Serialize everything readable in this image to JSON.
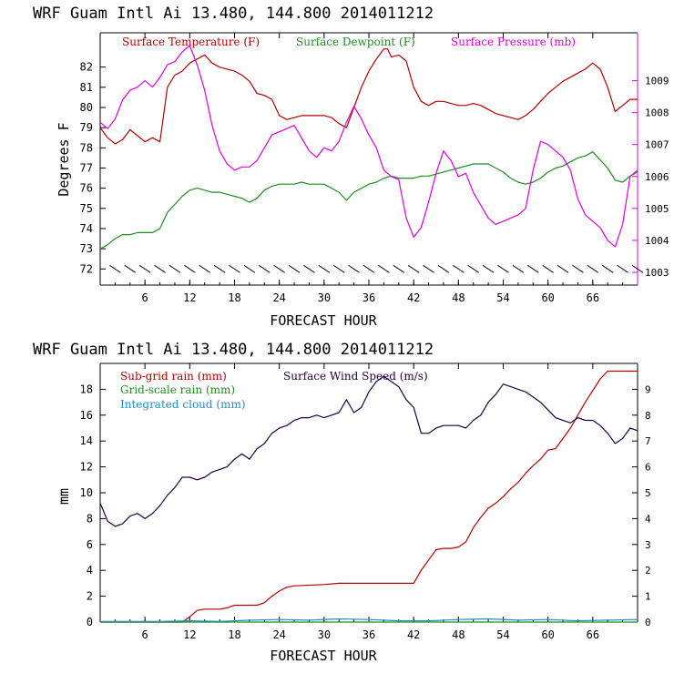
{
  "chart_data": [
    {
      "type": "line",
      "title": "WRF   Guam Intl Ai   13.480, 144.800  2014011212",
      "xlabel": "FORECAST HOUR",
      "ylabel": "Degrees F",
      "xlim": [
        0,
        72
      ],
      "ylim": [
        71.2,
        83.7
      ],
      "y2lim": [
        1002.6,
        1010.5
      ],
      "xticks": [
        6,
        12,
        18,
        24,
        30,
        36,
        42,
        48,
        54,
        60,
        66
      ],
      "xtick_labels": [
        "6",
        "12",
        "18",
        "24",
        "30",
        "36",
        "42",
        "48",
        "54",
        "60",
        "66"
      ],
      "yticks": [
        72,
        73,
        74,
        75,
        76,
        77,
        78,
        79,
        80,
        81,
        82
      ],
      "ytick_labels": [
        "72",
        "73",
        "74",
        "75",
        "76",
        "77",
        "78",
        "79",
        "80",
        "81",
        "82"
      ],
      "y2ticks": [
        1003,
        1004,
        1005,
        1006,
        1007,
        1008,
        1009
      ],
      "y2tick_labels": [
        "1003",
        "1004",
        "1005",
        "1006",
        "1007",
        "1008",
        "1009"
      ],
      "legend": [
        {
          "label": "Surface Temperature (F)",
          "color": "#b40000"
        },
        {
          "label": "Surface Dewpoint (F)",
          "color": "#1e8c1e"
        },
        {
          "label": "Surface Pressure (mb)",
          "color": "#e000e0"
        }
      ],
      "series": [
        {
          "name": "Surface Temperature (F)",
          "axis": "left",
          "color": "#b40000",
          "x": [
            0,
            1,
            2,
            3,
            4,
            5,
            6,
            7,
            8,
            9,
            10,
            11,
            12,
            13,
            14,
            15,
            16,
            17,
            18,
            19,
            20,
            21,
            22,
            23,
            24,
            25,
            26,
            27,
            28,
            29,
            30,
            31,
            32,
            33,
            34,
            35,
            36,
            37,
            38,
            38.5,
            39,
            40,
            41,
            42,
            43,
            44,
            45,
            46,
            47,
            48,
            49,
            50,
            51,
            52,
            53,
            54,
            55,
            56,
            57,
            58,
            59,
            60,
            61,
            62,
            63,
            64,
            65,
            66,
            67,
            68,
            69,
            70,
            71,
            72
          ],
          "y": [
            79.0,
            78.5,
            78.2,
            78.4,
            78.9,
            78.6,
            78.3,
            78.5,
            78.3,
            81.0,
            81.6,
            81.8,
            82.2,
            82.4,
            82.6,
            82.2,
            82.0,
            81.9,
            81.8,
            81.6,
            81.3,
            80.7,
            80.6,
            80.4,
            79.6,
            79.4,
            79.5,
            79.6,
            79.6,
            79.6,
            79.6,
            79.5,
            79.2,
            79.0,
            80.0,
            81.0,
            81.8,
            82.4,
            82.9,
            82.9,
            82.5,
            82.6,
            82.3,
            81.0,
            80.3,
            80.1,
            80.3,
            80.3,
            80.2,
            80.1,
            80.1,
            80.2,
            80.1,
            79.9,
            79.7,
            79.6,
            79.5,
            79.4,
            79.6,
            79.9,
            80.3,
            80.7,
            81.0,
            81.3,
            81.5,
            81.7,
            81.9,
            82.2,
            81.9,
            81.0,
            79.8,
            80.1,
            80.4,
            80.4
          ]
        },
        {
          "name": "Surface Dewpoint (F)",
          "axis": "left",
          "color": "#1e8c1e",
          "x": [
            0,
            1,
            2,
            3,
            4,
            5,
            6,
            7,
            8,
            9,
            10,
            11,
            12,
            13,
            14,
            15,
            16,
            17,
            18,
            19,
            20,
            21,
            22,
            23,
            24,
            25,
            26,
            27,
            28,
            29,
            30,
            31,
            32,
            33,
            34,
            35,
            36,
            37,
            38,
            39,
            40,
            41,
            42,
            43,
            44,
            45,
            46,
            47,
            48,
            49,
            50,
            51,
            52,
            53,
            54,
            55,
            56,
            57,
            58,
            59,
            60,
            61,
            62,
            63,
            64,
            65,
            66,
            67,
            68,
            69,
            70,
            71,
            72
          ],
          "y": [
            73.0,
            73.2,
            73.5,
            73.7,
            73.7,
            73.8,
            73.8,
            73.8,
            74.0,
            74.8,
            75.2,
            75.6,
            75.9,
            76.0,
            75.9,
            75.8,
            75.8,
            75.7,
            75.6,
            75.5,
            75.3,
            75.5,
            75.9,
            76.1,
            76.2,
            76.2,
            76.2,
            76.3,
            76.2,
            76.2,
            76.2,
            76.0,
            75.8,
            75.4,
            75.8,
            76.0,
            76.2,
            76.3,
            76.5,
            76.6,
            76.5,
            76.5,
            76.5,
            76.6,
            76.6,
            76.7,
            76.8,
            76.9,
            77.0,
            77.1,
            77.2,
            77.2,
            77.2,
            77.0,
            76.8,
            76.5,
            76.3,
            76.2,
            76.3,
            76.5,
            76.8,
            77.0,
            77.1,
            77.3,
            77.5,
            77.6,
            77.8,
            77.4,
            77.0,
            76.4,
            76.3,
            76.6,
            76.8
          ]
        },
        {
          "name": "Surface Pressure (mb)",
          "axis": "right",
          "color": "#e000e0",
          "x": [
            0,
            1,
            2,
            3,
            4,
            5,
            6,
            7,
            8,
            9,
            10,
            11,
            12,
            13,
            14,
            15,
            16,
            17,
            18,
            19,
            20,
            21,
            22,
            23,
            24,
            25,
            26,
            27,
            28,
            29,
            30,
            31,
            32,
            33,
            34,
            35,
            36,
            37,
            38,
            39,
            40,
            41,
            42,
            43,
            44,
            45,
            46,
            47,
            48,
            49,
            50,
            51,
            52,
            53,
            54,
            55,
            56,
            57,
            58,
            59,
            60,
            61,
            62,
            63,
            64,
            65,
            66,
            67,
            68,
            69,
            70,
            71,
            72
          ],
          "y": [
            1007.7,
            1007.5,
            1007.8,
            1008.4,
            1008.7,
            1008.8,
            1009.0,
            1008.8,
            1009.1,
            1009.5,
            1009.6,
            1009.9,
            1010.1,
            1009.5,
            1008.7,
            1007.6,
            1006.8,
            1006.4,
            1006.2,
            1006.3,
            1006.3,
            1006.5,
            1006.9,
            1007.3,
            1007.4,
            1007.5,
            1007.6,
            1007.2,
            1006.8,
            1006.6,
            1006.9,
            1006.8,
            1007.1,
            1007.7,
            1008.2,
            1007.8,
            1007.3,
            1006.9,
            1006.2,
            1006.0,
            1005.9,
            1004.7,
            1004.1,
            1004.4,
            1005.2,
            1006.1,
            1006.8,
            1006.5,
            1006.0,
            1006.1,
            1005.5,
            1005.1,
            1004.7,
            1004.5,
            1004.6,
            1004.7,
            1004.8,
            1005.0,
            1006.2,
            1007.1,
            1007.0,
            1006.8,
            1006.6,
            1006.2,
            1005.3,
            1004.8,
            1004.6,
            1004.4,
            1004.0,
            1003.8,
            1004.5,
            1006.0,
            1006.2
          ]
        },
        {
          "name": "Surface Wind Barbs",
          "axis": "left",
          "color": "#200040",
          "x": [
            2,
            4,
            6,
            8,
            10,
            12,
            14,
            16,
            18,
            20,
            22,
            24,
            26,
            28,
            30,
            32,
            34,
            36,
            38,
            40,
            42,
            44,
            46,
            48,
            50,
            52,
            54,
            56,
            58,
            60,
            62,
            64,
            66,
            68,
            70,
            72
          ],
          "y": [
            72,
            72,
            72,
            72,
            72,
            72,
            72,
            72,
            72,
            72,
            72,
            72,
            72,
            72,
            72,
            72,
            72,
            72,
            72,
            72,
            72,
            72,
            72,
            72,
            72,
            72,
            72,
            72,
            72,
            72,
            72,
            72,
            72,
            72,
            72,
            72
          ]
        }
      ]
    },
    {
      "type": "line",
      "title": "WRF   Guam Intl Ai   13.480, 144.800  2014011212",
      "xlabel": "FORECAST HOUR",
      "ylabel": "mm",
      "xlim": [
        0,
        72
      ],
      "ylim": [
        0,
        20
      ],
      "y2lim": [
        0,
        10
      ],
      "xticks": [
        6,
        12,
        18,
        24,
        30,
        36,
        42,
        48,
        54,
        60,
        66
      ],
      "xtick_labels": [
        "6",
        "12",
        "18",
        "24",
        "30",
        "36",
        "42",
        "48",
        "54",
        "60",
        "66"
      ],
      "yticks": [
        0,
        2,
        4,
        6,
        8,
        10,
        12,
        14,
        16,
        18
      ],
      "ytick_labels": [
        "0",
        "2",
        "4",
        "6",
        "8",
        "10",
        "12",
        "14",
        "16",
        "18"
      ],
      "y2ticks": [
        0,
        1,
        2,
        3,
        4,
        5,
        6,
        7,
        8,
        9
      ],
      "y2tick_labels": [
        "0",
        "1",
        "2",
        "3",
        "4",
        "5",
        "6",
        "7",
        "8",
        "9"
      ],
      "legend": [
        {
          "label": "Sub-grid rain (mm)",
          "color": "#b40000"
        },
        {
          "label": "Surface Wind Speed (m/s)",
          "color": "#200040"
        },
        {
          "label": "Grid-scale rain (mm)",
          "color": "#1e8c1e"
        },
        {
          "label": "Integrated cloud (mm)",
          "color": "#1e90c8"
        }
      ],
      "series": [
        {
          "name": "Sub-grid rain (mm)",
          "axis": "left",
          "color": "#b40000",
          "x": [
            0,
            11,
            12,
            13,
            14,
            15,
            16,
            17,
            18,
            19,
            20,
            21,
            22,
            23,
            24,
            25,
            26,
            30,
            32,
            36,
            40,
            42,
            43,
            44,
            45,
            46,
            47,
            48,
            49,
            50,
            51,
            52,
            53,
            54,
            55,
            56,
            57,
            58,
            59,
            60,
            61,
            62,
            63,
            64,
            65,
            66,
            67,
            68,
            72
          ],
          "y": [
            0,
            0,
            0.4,
            0.9,
            1.0,
            1.0,
            1.0,
            1.1,
            1.3,
            1.3,
            1.3,
            1.3,
            1.5,
            2.0,
            2.4,
            2.7,
            2.8,
            2.9,
            3.0,
            3.0,
            3.0,
            3.0,
            4.0,
            4.8,
            5.6,
            5.7,
            5.7,
            5.8,
            6.2,
            7.3,
            8.1,
            8.8,
            9.2,
            9.7,
            10.3,
            10.8,
            11.5,
            12.1,
            12.6,
            13.3,
            13.4,
            14.2,
            15.0,
            16.0,
            17.0,
            17.9,
            18.8,
            19.4,
            19.4
          ]
        },
        {
          "name": "Surface Wind Speed (m/s)",
          "axis": "right",
          "color": "#200040",
          "x": [
            0,
            1,
            2,
            3,
            4,
            5,
            6,
            7,
            8,
            9,
            10,
            11,
            12,
            13,
            14,
            15,
            16,
            17,
            18,
            19,
            20,
            21,
            22,
            23,
            24,
            25,
            26,
            27,
            28,
            29,
            30,
            31,
            32,
            33,
            34,
            35,
            36,
            37,
            38,
            39,
            40,
            41,
            42,
            43,
            44,
            45,
            46,
            47,
            48,
            49,
            50,
            51,
            52,
            53,
            54,
            55,
            56,
            57,
            58,
            59,
            60,
            61,
            62,
            63,
            64,
            65,
            66,
            67,
            68,
            69,
            70,
            71,
            72
          ],
          "y": [
            4.6,
            3.9,
            3.7,
            3.8,
            4.1,
            4.2,
            4.0,
            4.2,
            4.5,
            4.9,
            5.2,
            5.6,
            5.6,
            5.5,
            5.6,
            5.8,
            5.9,
            6.0,
            6.3,
            6.5,
            6.3,
            6.7,
            6.9,
            7.3,
            7.5,
            7.6,
            7.8,
            7.9,
            7.9,
            8.0,
            7.9,
            8.0,
            8.1,
            8.6,
            8.1,
            8.3,
            8.9,
            9.3,
            9.5,
            9.3,
            9.1,
            8.6,
            8.3,
            7.3,
            7.3,
            7.5,
            7.6,
            7.6,
            7.6,
            7.5,
            7.8,
            8.0,
            8.5,
            8.8,
            9.2,
            9.1,
            9.0,
            8.9,
            8.7,
            8.5,
            8.2,
            7.9,
            7.8,
            7.7,
            7.9,
            7.8,
            7.8,
            7.6,
            7.3,
            6.9,
            7.1,
            7.5,
            7.4
          ]
        },
        {
          "name": "Grid-scale rain (mm)",
          "axis": "left",
          "color": "#1e8c1e",
          "x": [
            0,
            72
          ],
          "y": [
            0,
            0
          ]
        },
        {
          "name": "Integrated cloud (mm)",
          "axis": "left",
          "color": "#1e90c8",
          "x": [
            0,
            8,
            12,
            16,
            20,
            24,
            28,
            32,
            36,
            40,
            44,
            48,
            52,
            56,
            60,
            64,
            68,
            72
          ],
          "y": [
            0.05,
            0.05,
            0.1,
            0.05,
            0.15,
            0.2,
            0.15,
            0.25,
            0.2,
            0.1,
            0.1,
            0.2,
            0.25,
            0.15,
            0.2,
            0.1,
            0.15,
            0.2
          ]
        }
      ]
    }
  ]
}
